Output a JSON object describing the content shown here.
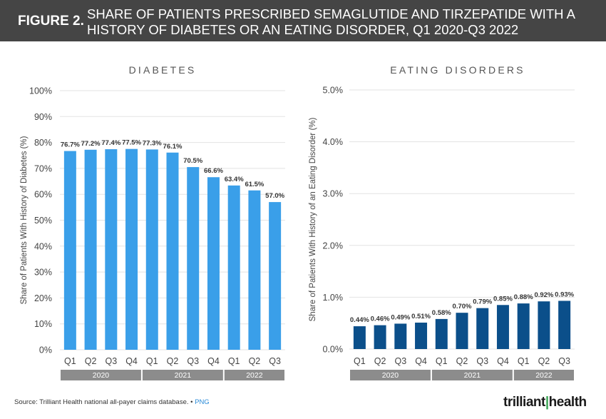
{
  "header": {
    "figure_label": "FIGURE 2.",
    "title": "SHARE OF PATIENTS PRESCRIBED SEMAGLUTIDE AND TIRZEPATIDE  WITH A HISTORY OF DIABETES OR AN EATING DISORDER, Q1 2020-Q3 2022"
  },
  "colors": {
    "diabetes_bar": "#3a9fe9",
    "eating_bar": "#0b4f8a",
    "year_band": "#8c8c8c",
    "header_bg": "#454545"
  },
  "chart_data": [
    {
      "type": "bar",
      "title": "DIABETES",
      "ylabel": "Share of Patients With History of Diabetes (%)",
      "xlabel": "",
      "categories": [
        "Q1",
        "Q2",
        "Q3",
        "Q4",
        "Q1",
        "Q2",
        "Q3",
        "Q4",
        "Q1",
        "Q2",
        "Q3"
      ],
      "year_groups": [
        {
          "label": "2020",
          "count": 4
        },
        {
          "label": "2021",
          "count": 4
        },
        {
          "label": "2022",
          "count": 3
        }
      ],
      "values": [
        76.7,
        77.2,
        77.4,
        77.5,
        77.3,
        76.1,
        70.5,
        66.6,
        63.4,
        61.5,
        57.0
      ],
      "data_labels": [
        "76.7%",
        "77.2%",
        "77.4%",
        "77.5%",
        "77.3%",
        "76.1%",
        "70.5%",
        "66.6%",
        "63.4%",
        "61.5%",
        "57.0%"
      ],
      "ylim": [
        0,
        100
      ],
      "yticks": [
        0,
        10,
        20,
        30,
        40,
        50,
        60,
        70,
        80,
        90,
        100
      ],
      "ytick_labels": [
        "0%",
        "10%",
        "20%",
        "30%",
        "40%",
        "50%",
        "60%",
        "70%",
        "80%",
        "90%",
        "100%"
      ],
      "grid": true
    },
    {
      "type": "bar",
      "title": "EATING DISORDERS",
      "ylabel": "Share of Patients With History of an Eating Disorder (%)",
      "xlabel": "",
      "categories": [
        "Q1",
        "Q2",
        "Q3",
        "Q4",
        "Q1",
        "Q2",
        "Q3",
        "Q4",
        "Q1",
        "Q2",
        "Q3"
      ],
      "year_groups": [
        {
          "label": "2020",
          "count": 4
        },
        {
          "label": "2021",
          "count": 4
        },
        {
          "label": "2022",
          "count": 3
        }
      ],
      "values": [
        0.44,
        0.46,
        0.49,
        0.51,
        0.58,
        0.7,
        0.79,
        0.85,
        0.88,
        0.92,
        0.93
      ],
      "data_labels": [
        "0.44%",
        "0.46%",
        "0.49%",
        "0.51%",
        "0.58%",
        "0.70%",
        "0.79%",
        "0.85%",
        "0.88%",
        "0.92%",
        "0.93%"
      ],
      "ylim": [
        0,
        5
      ],
      "yticks": [
        0,
        1,
        2,
        3,
        4,
        5
      ],
      "ytick_labels": [
        "0.0%",
        "1.0%",
        "2.0%",
        "3.0%",
        "4.0%",
        "5.0%"
      ],
      "grid": true
    }
  ],
  "footer": {
    "source": "Source: Trilliant Health national all-payer claims database.",
    "separator": "•",
    "png_link": "PNG",
    "logo_text": "trilliant",
    "logo_text2": "health"
  }
}
